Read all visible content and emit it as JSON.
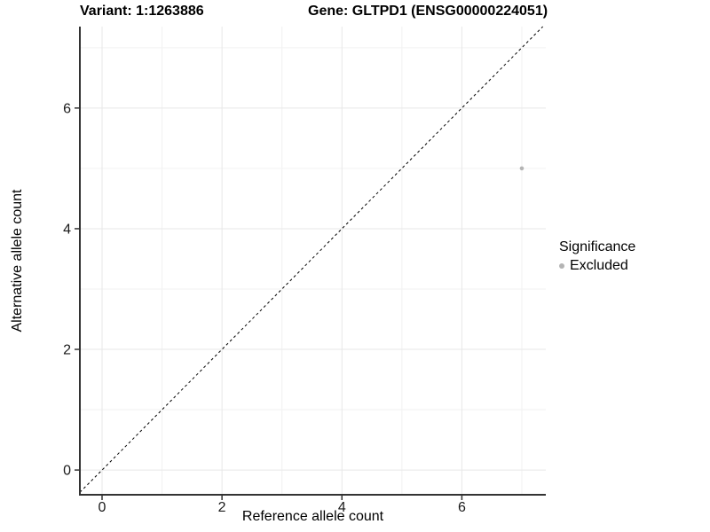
{
  "header": {
    "variant_title": "Variant: 1:1263886",
    "gene_title": "Gene: GLTPD1 (ENSG00000224051)"
  },
  "chart_data": {
    "type": "scatter",
    "title": "Variant: 1:1263886        Gene: GLTPD1 (ENSG00000224051)",
    "xlabel": "Reference allele count",
    "ylabel": "Alternative allele count",
    "xlim": [
      -0.37,
      7.4
    ],
    "ylim": [
      -0.41,
      7.35
    ],
    "x_ticks": [
      0,
      2,
      4,
      6
    ],
    "y_ticks": [
      0,
      2,
      4,
      6
    ],
    "x_minor_ticks": [
      1,
      3,
      5,
      7
    ],
    "y_minor_ticks": [
      1,
      3,
      5,
      7
    ],
    "grid": "major+minor",
    "legend_position": "right",
    "reference_line": {
      "type": "identity",
      "slope": 1,
      "intercept": 0,
      "style": "dashed",
      "color": "#000000"
    },
    "series": [
      {
        "name": "Excluded",
        "color": "#b4b4b4",
        "marker": "circle",
        "points": [
          {
            "x": 7,
            "y": 5
          }
        ]
      }
    ],
    "legend": {
      "title": "Significance",
      "entries": [
        {
          "label": "Excluded",
          "color": "#b4b4b4",
          "marker": "circle"
        }
      ]
    },
    "colors": {
      "background": "#ffffff",
      "grid_major": "#e7e7e7",
      "grid_minor": "#f2f2f2",
      "axis_line": "#333333",
      "tick_mark": "#333333",
      "tick_label": "#1a1a1a",
      "point": "#b4b4b4"
    }
  }
}
